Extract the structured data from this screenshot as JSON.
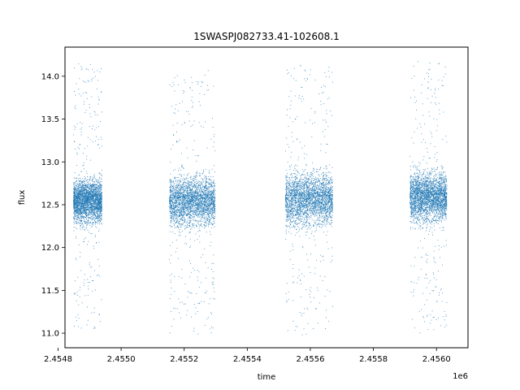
{
  "chart_data": {
    "type": "scatter",
    "title": "1SWASPJ082733.41-102608.1",
    "xlabel": "time",
    "ylabel": "flux",
    "x_offset_label": "1e6",
    "xlim": [
      2454822,
      2456100
    ],
    "ylim": [
      10.83,
      14.34
    ],
    "x_ticks": [
      2454800,
      2455000,
      2455200,
      2455400,
      2455600,
      2455800,
      2456000
    ],
    "x_tick_labels": [
      "2.4548",
      "2.4550",
      "2.4552",
      "2.4554",
      "2.4556",
      "2.4558",
      "2.4560"
    ],
    "y_ticks": [
      11.0,
      11.5,
      12.0,
      12.5,
      13.0,
      13.5,
      14.0
    ],
    "y_tick_labels": [
      "11.0",
      "11.5",
      "12.0",
      "12.5",
      "13.0",
      "13.5",
      "14.0"
    ],
    "grid": false,
    "legend": "none",
    "marker_color": "#1f77b4",
    "series": [
      {
        "values_summary": "dense clusters of points; each cluster spans a time range with flux concentrated between the core low and high values",
        "clusters": [
          {
            "x_start": 2454848,
            "x_end": 2454938,
            "core_low": 12.25,
            "core_high": 12.85,
            "min": 11.05,
            "max": 14.15
          },
          {
            "x_start": 2455152,
            "x_end": 2455297,
            "core_low": 12.2,
            "core_high": 12.9,
            "min": 10.97,
            "max": 14.1
          },
          {
            "x_start": 2455520,
            "x_end": 2455670,
            "core_low": 12.2,
            "core_high": 12.95,
            "min": 10.98,
            "max": 14.13
          },
          {
            "x_start": 2455915,
            "x_end": 2456032,
            "core_low": 12.25,
            "core_high": 12.95,
            "min": 11.0,
            "max": 14.18
          }
        ]
      }
    ]
  }
}
